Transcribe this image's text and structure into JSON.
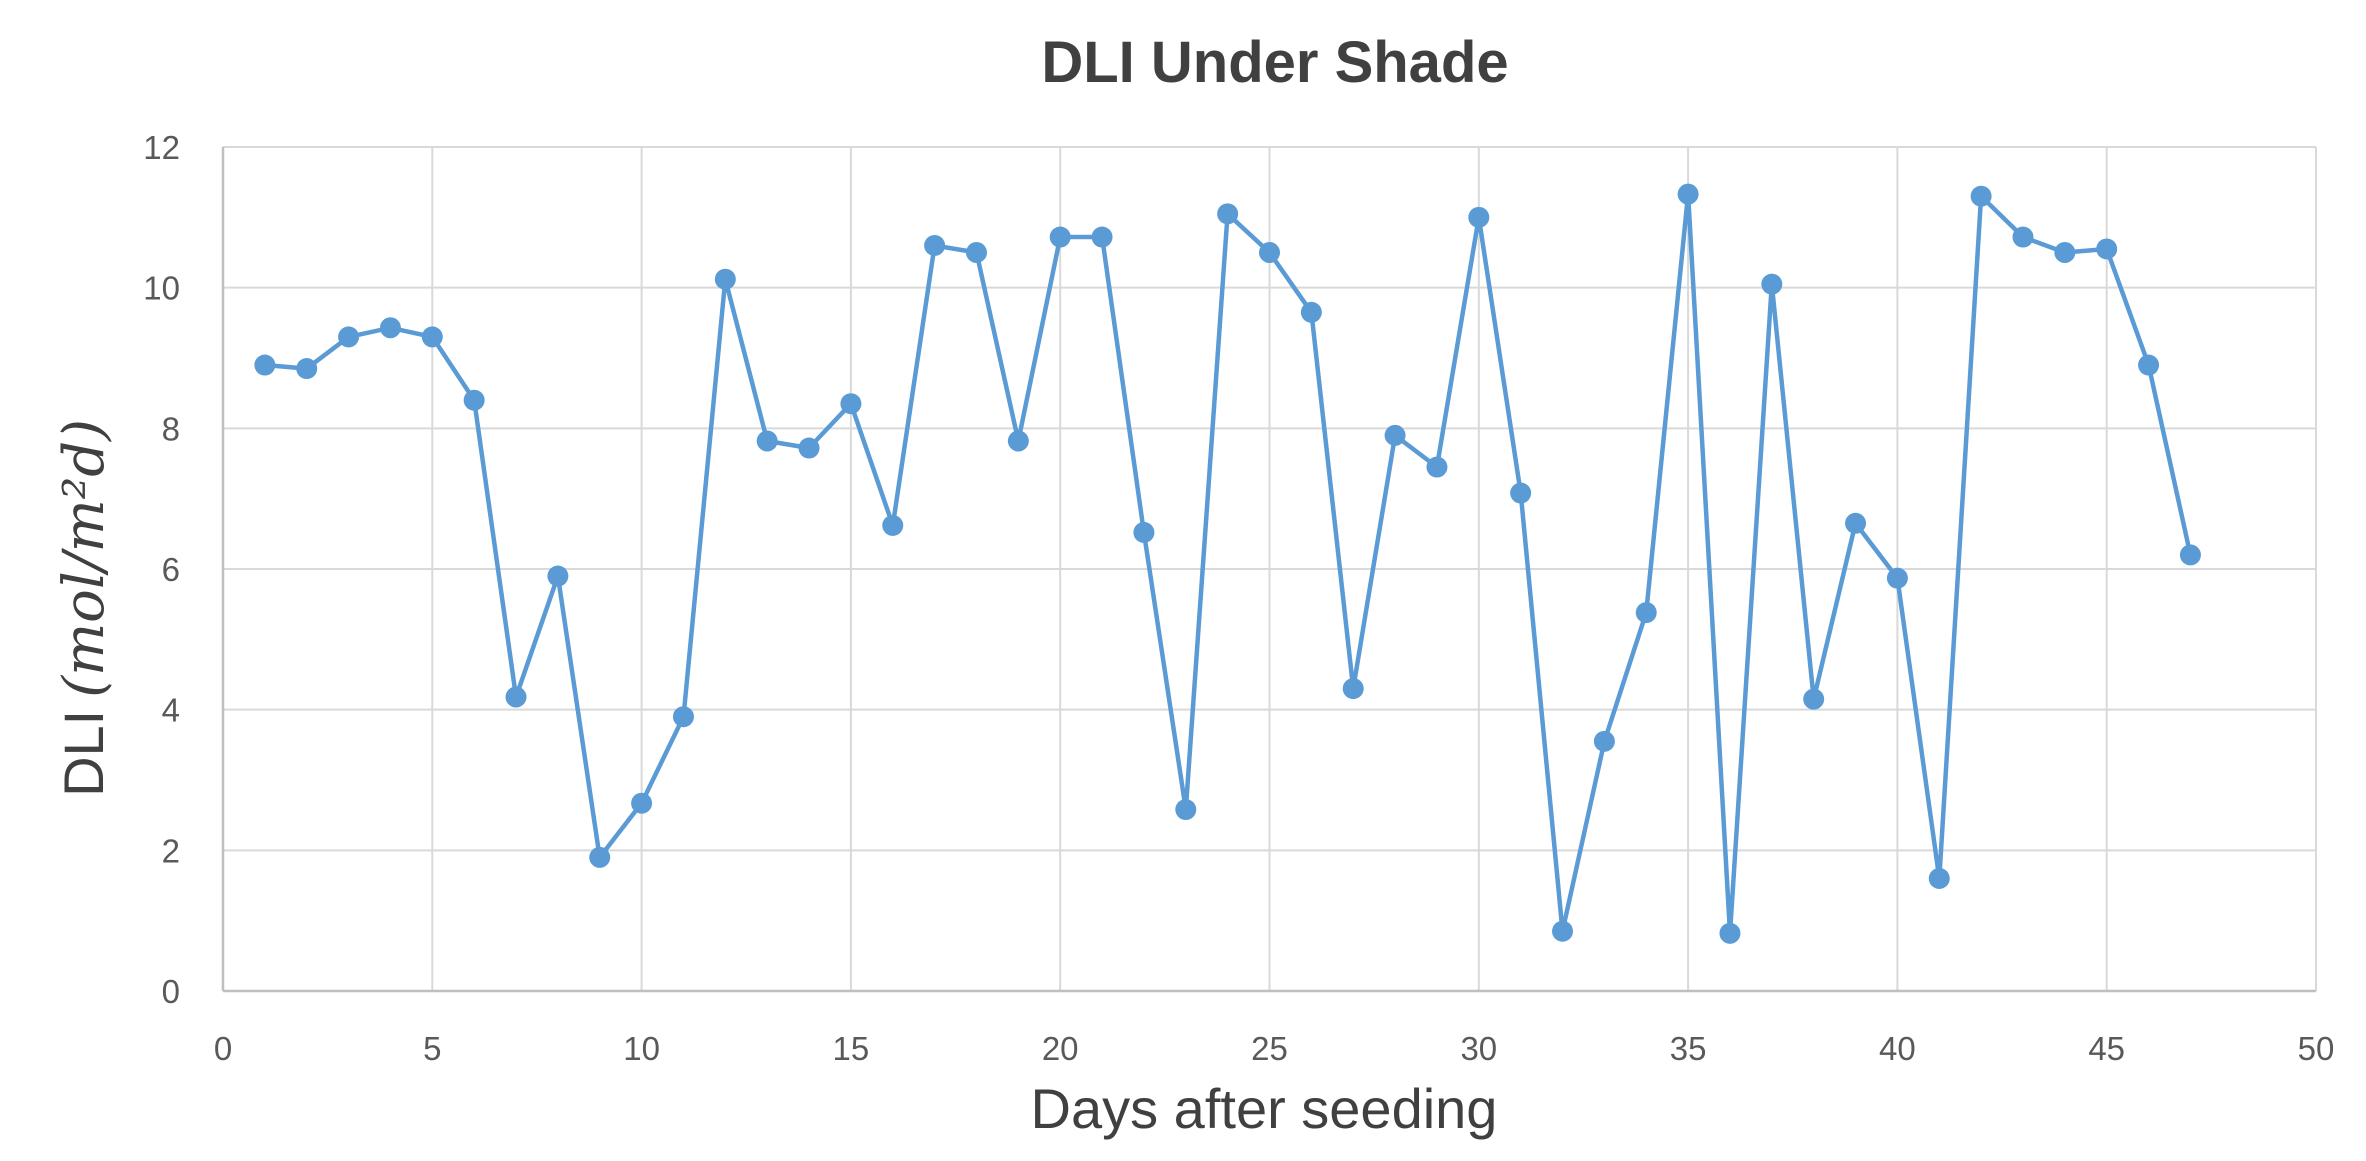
{
  "chart_data": {
    "type": "line",
    "title": "DLI Under Shade",
    "xlabel": "Days after seeding",
    "ylabel_prefix": "DLI",
    "ylabel_unit": "(mol/m²d)",
    "xlim": [
      0,
      50
    ],
    "ylim": [
      0,
      12
    ],
    "x_ticks": [
      0,
      5,
      10,
      15,
      20,
      25,
      30,
      35,
      40,
      45,
      50
    ],
    "y_ticks": [
      0,
      2,
      4,
      6,
      8,
      10,
      12
    ],
    "grid": true,
    "series": [
      {
        "color": "#5b9bd5",
        "points": [
          [
            1,
            8.9
          ],
          [
            2,
            8.85
          ],
          [
            3,
            9.3
          ],
          [
            4,
            9.43
          ],
          [
            5,
            9.3
          ],
          [
            6,
            8.4
          ],
          [
            7,
            4.18
          ],
          [
            8,
            5.9
          ],
          [
            9,
            1.9
          ],
          [
            10,
            2.67
          ],
          [
            11,
            3.9
          ],
          [
            12,
            10.12
          ],
          [
            13,
            7.82
          ],
          [
            14,
            7.72
          ],
          [
            15,
            8.35
          ],
          [
            16,
            6.62
          ],
          [
            17,
            10.6
          ],
          [
            18,
            10.5
          ],
          [
            19,
            7.82
          ],
          [
            20,
            10.72
          ],
          [
            21,
            10.72
          ],
          [
            22,
            6.52
          ],
          [
            23,
            2.58
          ],
          [
            24,
            11.05
          ],
          [
            25,
            10.5
          ],
          [
            26,
            9.65
          ],
          [
            27,
            4.3
          ],
          [
            28,
            7.9
          ],
          [
            29,
            7.45
          ],
          [
            30,
            11.0
          ],
          [
            31,
            7.08
          ],
          [
            32,
            0.85
          ],
          [
            33,
            3.55
          ],
          [
            34,
            5.38
          ],
          [
            35,
            11.33
          ],
          [
            36,
            0.82
          ],
          [
            37,
            10.05
          ],
          [
            38,
            4.15
          ],
          [
            39,
            6.65
          ],
          [
            40,
            5.87
          ],
          [
            41,
            1.6
          ],
          [
            42,
            11.3
          ],
          [
            43,
            10.72
          ],
          [
            44,
            10.5
          ],
          [
            45,
            10.55
          ],
          [
            46,
            8.9
          ],
          [
            47,
            6.2
          ]
        ]
      }
    ]
  }
}
